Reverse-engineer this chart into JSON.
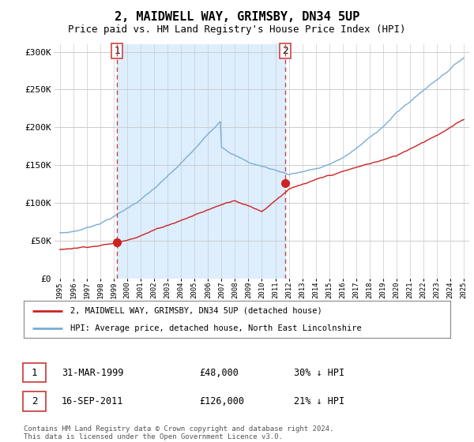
{
  "title": "2, MAIDWELL WAY, GRIMSBY, DN34 5UP",
  "subtitle": "Price paid vs. HM Land Registry's House Price Index (HPI)",
  "title_fontsize": 11,
  "subtitle_fontsize": 9,
  "background_color": "#ffffff",
  "plot_bg_color": "#ffffff",
  "shade_color": "#ddeeff",
  "hpi_color": "#7aadd4",
  "price_color": "#cc2222",
  "vline_color": "#cc4444",
  "grid_color": "#cccccc",
  "ylim": [
    0,
    310000
  ],
  "yticks": [
    0,
    50000,
    100000,
    150000,
    200000,
    250000,
    300000
  ],
  "ytick_labels": [
    "£0",
    "£50K",
    "£100K",
    "£150K",
    "£200K",
    "£250K",
    "£300K"
  ],
  "transaction1": {
    "date": "31-MAR-1999",
    "price": 48000,
    "label": "1",
    "hpi_pct": "30% ↓ HPI",
    "year": 1999.25
  },
  "transaction2": {
    "date": "16-SEP-2011",
    "price": 126000,
    "label": "2",
    "hpi_pct": "21% ↓ HPI",
    "year": 2011.75
  },
  "legend_line1": "2, MAIDWELL WAY, GRIMSBY, DN34 5UP (detached house)",
  "legend_line2": "HPI: Average price, detached house, North East Lincolnshire",
  "footnote": "Contains HM Land Registry data © Crown copyright and database right 2024.\nThis data is licensed under the Open Government Licence v3.0.",
  "table_row1": [
    "1",
    "31-MAR-1999",
    "£48,000",
    "30% ↓ HPI"
  ],
  "table_row2": [
    "2",
    "16-SEP-2011",
    "£126,000",
    "21% ↓ HPI"
  ]
}
